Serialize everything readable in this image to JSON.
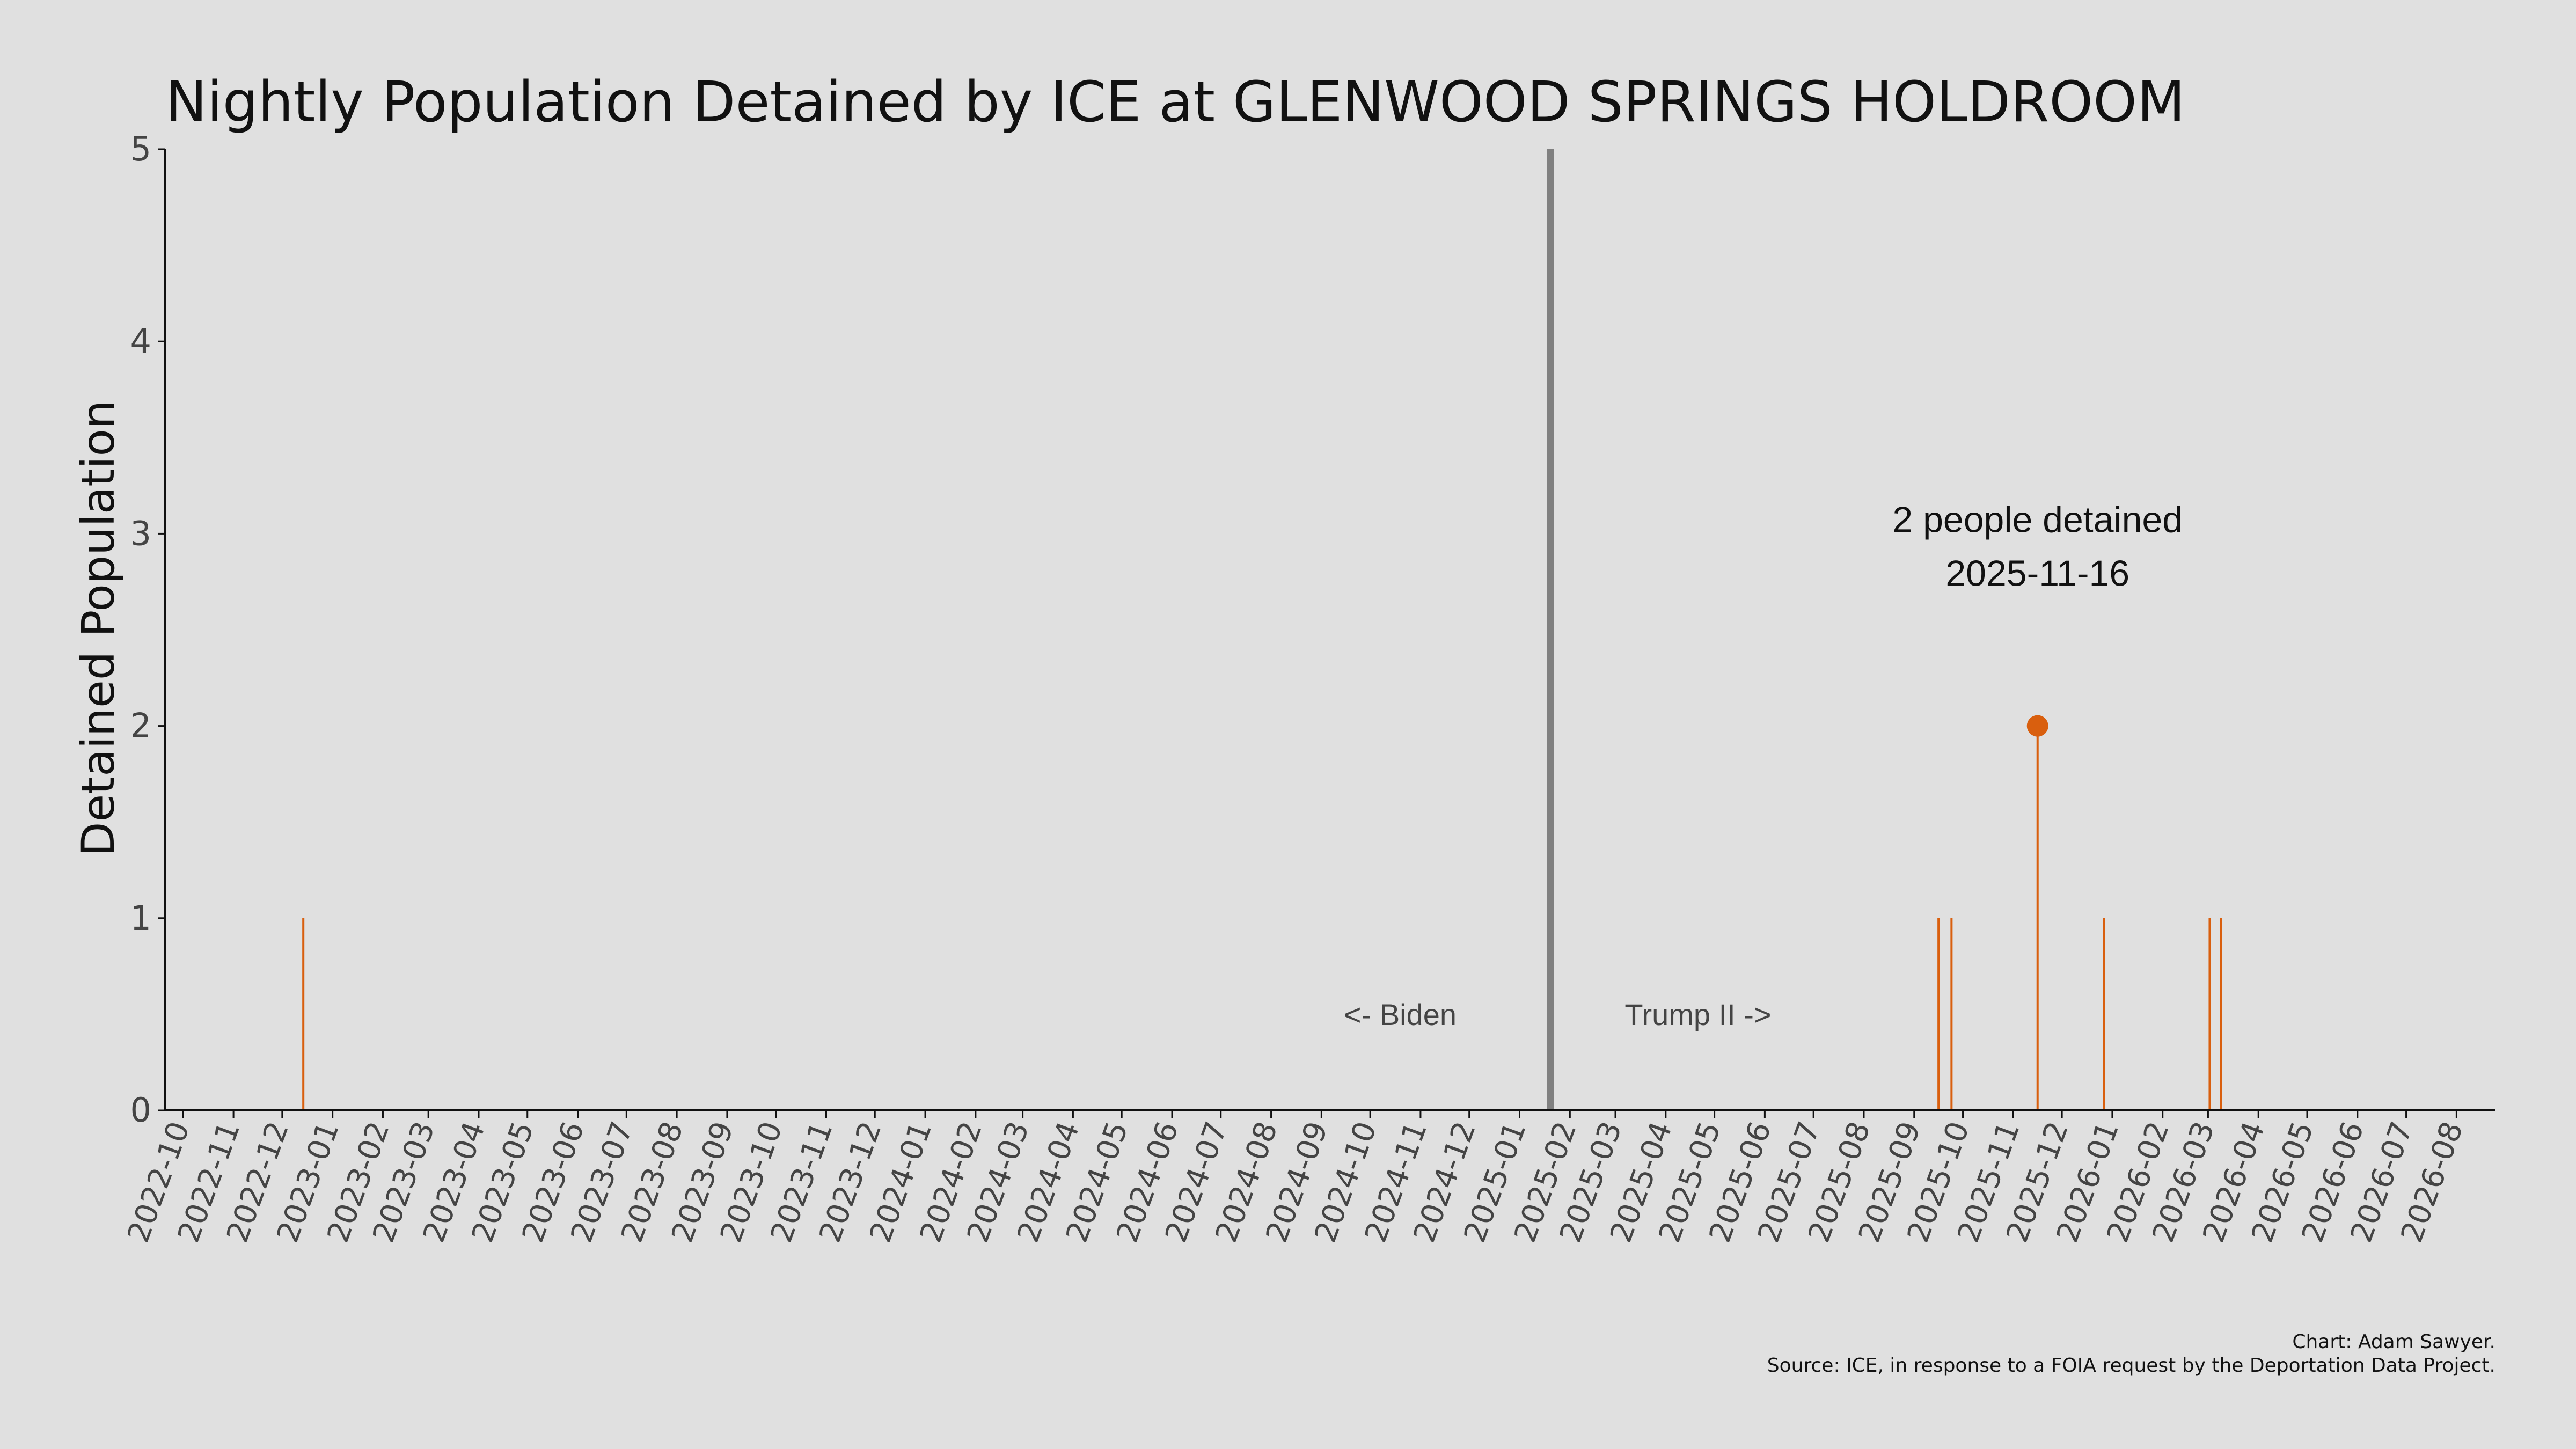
{
  "chart_data": {
    "type": "bar",
    "title": "Nightly Population Detained by ICE at GLENWOOD SPRINGS HOLDROOM",
    "ylabel": "Detained Population",
    "xlabel": "",
    "ylim": [
      0,
      5
    ],
    "yticks": [
      "0",
      "1",
      "2",
      "3",
      "4",
      "5"
    ],
    "xlim": [
      "2022-09-20",
      "2026-08-25"
    ],
    "xticks": [
      "2022-10",
      "2022-11",
      "2022-12",
      "2023-01",
      "2023-02",
      "2023-03",
      "2023-04",
      "2023-05",
      "2023-06",
      "2023-07",
      "2023-08",
      "2023-09",
      "2023-10",
      "2023-11",
      "2023-12",
      "2024-01",
      "2024-02",
      "2024-03",
      "2024-04",
      "2024-05",
      "2024-06",
      "2024-07",
      "2024-08",
      "2024-09",
      "2024-10",
      "2024-11",
      "2024-12",
      "2025-01",
      "2025-02",
      "2025-03",
      "2025-04",
      "2025-05",
      "2025-06",
      "2025-07",
      "2025-08",
      "2025-09",
      "2025-10",
      "2025-11",
      "2025-12",
      "2026-01",
      "2026-02",
      "2026-03",
      "2026-04",
      "2026-05",
      "2026-06",
      "2026-07",
      "2026-08"
    ],
    "grid": false,
    "series": [
      {
        "x": [
          "2022-12-14",
          "2025-09-16",
          "2025-09-24",
          "2025-11-16",
          "2025-12-27",
          "2026-03-02",
          "2026-03-09"
        ],
        "values": [
          1,
          1,
          1,
          2,
          1,
          1,
          1
        ]
      }
    ],
    "reference_line": {
      "x": "2025-01-20"
    },
    "era_labels": {
      "left": "<- Biden",
      "right": "Trump II ->"
    },
    "annotation": {
      "x": "2025-11-16",
      "y": 2,
      "line1": "2 people detained",
      "line2": "2025-11-16"
    },
    "credit_line1": "Chart: Adam Sawyer.",
    "credit_line2": "Source: ICE, in response to a FOIA request by the Deportation Data Project.",
    "colors": {
      "bar": "#d95f0e",
      "reference": "#808080",
      "axis": "#111111",
      "background": "#e0e0e0"
    }
  }
}
